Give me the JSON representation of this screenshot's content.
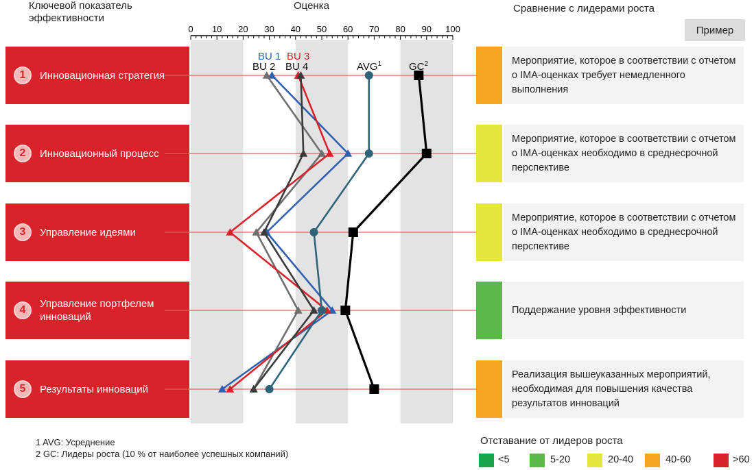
{
  "header": {
    "kpi_title_line1": "Ключевой показатель",
    "kpi_title_line2": "эффективности",
    "score_title": "Оценка",
    "comparison_title": "Сравнение с лидерами роста",
    "example_button": "Пример"
  },
  "kpis": [
    {
      "num": "1",
      "label": "Инновационная стратегия"
    },
    {
      "num": "2",
      "label": "Инновационный процесс"
    },
    {
      "num": "3",
      "label": "Управление идеями"
    },
    {
      "num": "4",
      "label": "Управление портфелем инноваций"
    },
    {
      "num": "5",
      "label": "Результаты инноваций"
    }
  ],
  "recommendations": [
    {
      "text": "Мероприятие, которое в соответствии с отчетом о IMA-оценках требует немедленного выполнения",
      "color": "#f6a623"
    },
    {
      "text": "Мероприятие, которое в соответствии с отчетом о IMA-оценках необходимо в среднесрочной перспективе",
      "color": "#e5e63a"
    },
    {
      "text": "Мероприятие, которое в соответствии с отчетом о IMA-оценках необходимо в среднесрочной перспективе",
      "color": "#e5e63a"
    },
    {
      "text": "Поддержание уровня эффективности",
      "color": "#5cb848"
    },
    {
      "text": "Реализация вышеуказанных мероприятий, необходимая для повышения качества результатов инноваций",
      "color": "#f6a623"
    }
  ],
  "footnotes": {
    "n1": "1 AVG: Усреднение",
    "n2": "2 GC: Лидеры роста (10 % от наиболее успешных компаний)"
  },
  "legend": {
    "title": "Отставание от лидеров роста",
    "items": [
      {
        "label": "<5",
        "color": "#1aa34a"
      },
      {
        "label": "5-20",
        "color": "#5cb848"
      },
      {
        "label": "20-40",
        "color": "#e5e63a"
      },
      {
        "label": "40-60",
        "color": "#f6a623"
      },
      {
        "label": ">60",
        "color": "#d8232a"
      }
    ]
  },
  "chart_data": {
    "type": "line",
    "categories": [
      "Инновационная стратегия",
      "Инновационный процесс",
      "Управление идеями",
      "Управление портфелем инноваций",
      "Результаты инноваций"
    ],
    "xlim": [
      0,
      100
    ],
    "xticks": [
      0,
      10,
      20,
      30,
      40,
      50,
      60,
      70,
      80,
      90,
      100
    ],
    "series": [
      {
        "name": "BU 1",
        "color": "#2e5fb0",
        "marker": "triangle",
        "values": [
          31,
          60,
          29,
          54,
          12
        ]
      },
      {
        "name": "BU 2",
        "color": "#6e6e6e",
        "marker": "triangle",
        "values": [
          29,
          50,
          25,
          41,
          24
        ]
      },
      {
        "name": "BU 3",
        "color": "#d8232a",
        "marker": "triangle",
        "values": [
          41,
          53,
          15,
          52,
          15
        ]
      },
      {
        "name": "BU 4",
        "color": "#3a3a3a",
        "marker": "triangle",
        "values": [
          42,
          43,
          28,
          47,
          24
        ]
      },
      {
        "name": "AVG",
        "sup": "1",
        "color": "#2f6478",
        "marker": "circle",
        "values": [
          68,
          68,
          47,
          50,
          30
        ]
      },
      {
        "name": "GC",
        "sup": "2",
        "color": "#000000",
        "marker": "square",
        "values": [
          87,
          90,
          62,
          59,
          70
        ]
      }
    ]
  }
}
